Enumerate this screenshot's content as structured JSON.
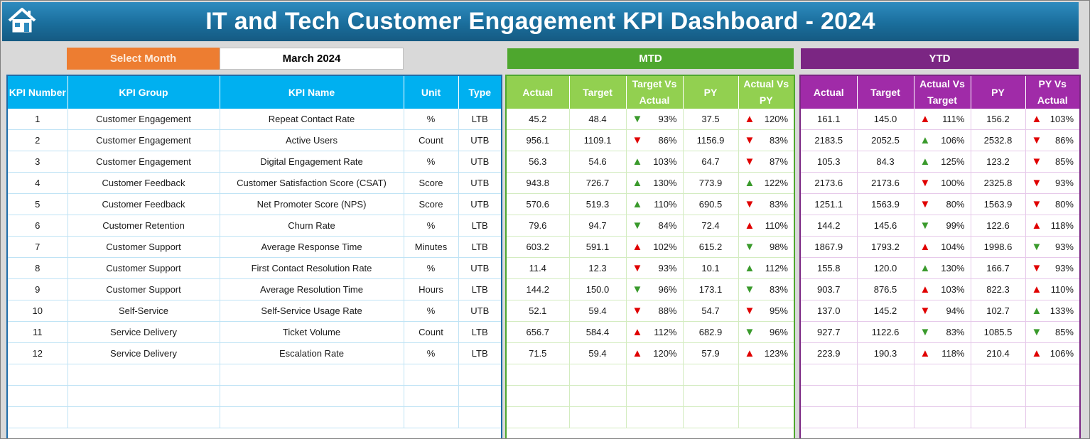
{
  "title": "IT and Tech Customer Engagement KPI Dashboard - 2024",
  "select_month": {
    "label": "Select Month",
    "value": "March 2024"
  },
  "sections": {
    "mtd": "MTD",
    "ytd": "YTD"
  },
  "kpi_headers": [
    "KPI Number",
    "KPI Group",
    "KPI Name",
    "Unit",
    "Type"
  ],
  "mtd_headers": [
    "Actual",
    "Target",
    "Target Vs Actual",
    "PY",
    "Actual Vs PY"
  ],
  "ytd_headers": [
    "Actual",
    "Target",
    "Actual Vs Target",
    "PY",
    "PY Vs Actual"
  ],
  "rows": [
    {
      "num": "1",
      "group": "Customer Engagement",
      "name": "Repeat Contact Rate",
      "unit": "%",
      "type": "LTB",
      "mtd": {
        "actual": "45.2",
        "target": "48.4",
        "tva": "93%",
        "tva_dir": "down",
        "tva_good": true,
        "py": "37.5",
        "avp": "120%",
        "avp_dir": "up",
        "avp_good": false
      },
      "ytd": {
        "actual": "161.1",
        "target": "145.0",
        "avt": "111%",
        "avt_dir": "up",
        "avt_good": false,
        "py": "156.2",
        "pva": "103%",
        "pva_dir": "up",
        "pva_good": false
      }
    },
    {
      "num": "2",
      "group": "Customer Engagement",
      "name": "Active Users",
      "unit": "Count",
      "type": "UTB",
      "mtd": {
        "actual": "956.1",
        "target": "1109.1",
        "tva": "86%",
        "tva_dir": "down",
        "tva_good": false,
        "py": "1156.9",
        "avp": "83%",
        "avp_dir": "down",
        "avp_good": false
      },
      "ytd": {
        "actual": "2183.5",
        "target": "2052.5",
        "avt": "106%",
        "avt_dir": "up",
        "avt_good": true,
        "py": "2532.8",
        "pva": "86%",
        "pva_dir": "down",
        "pva_good": false
      }
    },
    {
      "num": "3",
      "group": "Customer Engagement",
      "name": "Digital Engagement Rate",
      "unit": "%",
      "type": "UTB",
      "mtd": {
        "actual": "56.3",
        "target": "54.6",
        "tva": "103%",
        "tva_dir": "up",
        "tva_good": true,
        "py": "64.7",
        "avp": "87%",
        "avp_dir": "down",
        "avp_good": false
      },
      "ytd": {
        "actual": "105.3",
        "target": "84.3",
        "avt": "125%",
        "avt_dir": "up",
        "avt_good": true,
        "py": "123.2",
        "pva": "85%",
        "pva_dir": "down",
        "pva_good": false
      }
    },
    {
      "num": "4",
      "group": "Customer Feedback",
      "name": "Customer Satisfaction Score (CSAT)",
      "unit": "Score",
      "type": "UTB",
      "mtd": {
        "actual": "943.8",
        "target": "726.7",
        "tva": "130%",
        "tva_dir": "up",
        "tva_good": true,
        "py": "773.9",
        "avp": "122%",
        "avp_dir": "up",
        "avp_good": true
      },
      "ytd": {
        "actual": "2173.6",
        "target": "2173.6",
        "avt": "100%",
        "avt_dir": "down",
        "avt_good": false,
        "py": "2325.8",
        "pva": "93%",
        "pva_dir": "down",
        "pva_good": false
      }
    },
    {
      "num": "5",
      "group": "Customer Feedback",
      "name": "Net Promoter Score (NPS)",
      "unit": "Score",
      "type": "UTB",
      "mtd": {
        "actual": "570.6",
        "target": "519.3",
        "tva": "110%",
        "tva_dir": "up",
        "tva_good": true,
        "py": "690.5",
        "avp": "83%",
        "avp_dir": "down",
        "avp_good": false
      },
      "ytd": {
        "actual": "1251.1",
        "target": "1563.9",
        "avt": "80%",
        "avt_dir": "down",
        "avt_good": false,
        "py": "1563.9",
        "pva": "80%",
        "pva_dir": "down",
        "pva_good": false
      }
    },
    {
      "num": "6",
      "group": "Customer Retention",
      "name": "Churn Rate",
      "unit": "%",
      "type": "LTB",
      "mtd": {
        "actual": "79.6",
        "target": "94.7",
        "tva": "84%",
        "tva_dir": "down",
        "tva_good": true,
        "py": "72.4",
        "avp": "110%",
        "avp_dir": "up",
        "avp_good": false
      },
      "ytd": {
        "actual": "144.2",
        "target": "145.6",
        "avt": "99%",
        "avt_dir": "down",
        "avt_good": true,
        "py": "122.6",
        "pva": "118%",
        "pva_dir": "up",
        "pva_good": false
      }
    },
    {
      "num": "7",
      "group": "Customer Support",
      "name": "Average Response Time",
      "unit": "Minutes",
      "type": "LTB",
      "mtd": {
        "actual": "603.2",
        "target": "591.1",
        "tva": "102%",
        "tva_dir": "up",
        "tva_good": false,
        "py": "615.2",
        "avp": "98%",
        "avp_dir": "down",
        "avp_good": true
      },
      "ytd": {
        "actual": "1867.9",
        "target": "1793.2",
        "avt": "104%",
        "avt_dir": "up",
        "avt_good": false,
        "py": "1998.6",
        "pva": "93%",
        "pva_dir": "down",
        "pva_good": true
      }
    },
    {
      "num": "8",
      "group": "Customer Support",
      "name": "First Contact Resolution Rate",
      "unit": "%",
      "type": "UTB",
      "mtd": {
        "actual": "11.4",
        "target": "12.3",
        "tva": "93%",
        "tva_dir": "down",
        "tva_good": false,
        "py": "10.1",
        "avp": "112%",
        "avp_dir": "up",
        "avp_good": true
      },
      "ytd": {
        "actual": "155.8",
        "target": "120.0",
        "avt": "130%",
        "avt_dir": "up",
        "avt_good": true,
        "py": "166.7",
        "pva": "93%",
        "pva_dir": "down",
        "pva_good": false
      }
    },
    {
      "num": "9",
      "group": "Customer Support",
      "name": "Average Resolution Time",
      "unit": "Hours",
      "type": "LTB",
      "mtd": {
        "actual": "144.2",
        "target": "150.0",
        "tva": "96%",
        "tva_dir": "down",
        "tva_good": true,
        "py": "173.1",
        "avp": "83%",
        "avp_dir": "down",
        "avp_good": true
      },
      "ytd": {
        "actual": "903.7",
        "target": "876.5",
        "avt": "103%",
        "avt_dir": "up",
        "avt_good": false,
        "py": "822.3",
        "pva": "110%",
        "pva_dir": "up",
        "pva_good": false
      }
    },
    {
      "num": "10",
      "group": "Self-Service",
      "name": "Self-Service Usage Rate",
      "unit": "%",
      "type": "UTB",
      "mtd": {
        "actual": "52.1",
        "target": "59.4",
        "tva": "88%",
        "tva_dir": "down",
        "tva_good": false,
        "py": "54.7",
        "avp": "95%",
        "avp_dir": "down",
        "avp_good": false
      },
      "ytd": {
        "actual": "137.0",
        "target": "145.2",
        "avt": "94%",
        "avt_dir": "down",
        "avt_good": false,
        "py": "102.7",
        "pva": "133%",
        "pva_dir": "up",
        "pva_good": true
      }
    },
    {
      "num": "11",
      "group": "Service Delivery",
      "name": "Ticket Volume",
      "unit": "Count",
      "type": "LTB",
      "mtd": {
        "actual": "656.7",
        "target": "584.4",
        "tva": "112%",
        "tva_dir": "up",
        "tva_good": false,
        "py": "682.9",
        "avp": "96%",
        "avp_dir": "down",
        "avp_good": true
      },
      "ytd": {
        "actual": "927.7",
        "target": "1122.6",
        "avt": "83%",
        "avt_dir": "down",
        "avt_good": true,
        "py": "1085.5",
        "pva": "85%",
        "pva_dir": "down",
        "pva_good": true
      }
    },
    {
      "num": "12",
      "group": "Service Delivery",
      "name": "Escalation Rate",
      "unit": "%",
      "type": "LTB",
      "mtd": {
        "actual": "71.5",
        "target": "59.4",
        "tva": "120%",
        "tva_dir": "up",
        "tva_good": false,
        "py": "57.9",
        "avp": "123%",
        "avp_dir": "up",
        "avp_good": false
      },
      "ytd": {
        "actual": "223.9",
        "target": "190.3",
        "avt": "118%",
        "avt_dir": "up",
        "avt_good": false,
        "py": "210.4",
        "pva": "106%",
        "pva_dir": "up",
        "pva_good": false
      }
    }
  ],
  "empty_rows": 3,
  "colors": {
    "header_blue": "#1a6e9c",
    "select_orange": "#ed7d31",
    "mtd_green": "#4ea72e",
    "ytd_purple": "#7b2683",
    "kpi_header": "#00b0f0",
    "arrow_good": "#3a9a2c",
    "arrow_bad": "#e00000"
  },
  "icons": {
    "home": "home-icon",
    "up": "triangle-up-icon",
    "down": "triangle-down-icon"
  }
}
